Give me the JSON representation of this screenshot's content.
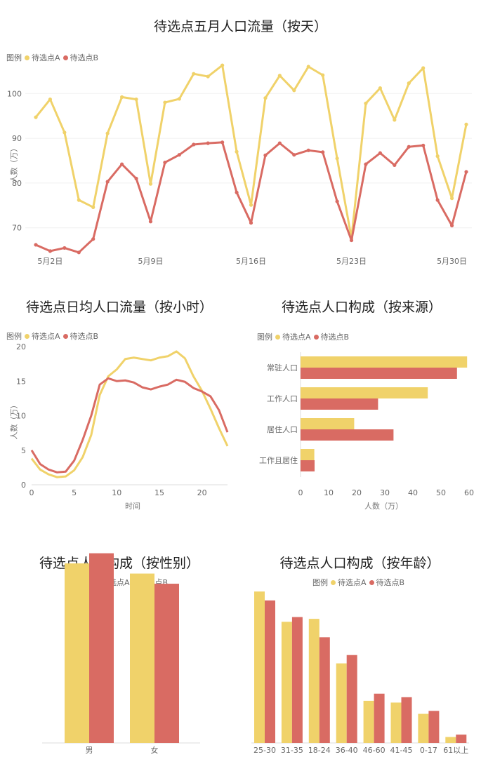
{
  "colors": {
    "a": "#f0d26a",
    "b": "#d96b63",
    "grid": "#f0f0f0"
  },
  "legend": {
    "label": "图例",
    "a": "待选点A",
    "b": "待选点B"
  },
  "chart_data": [
    {
      "type": "line",
      "title": "待选点五月人口流量（按天）",
      "ylabel": "人数（万）",
      "xlabel": "",
      "x": [
        1,
        2,
        3,
        4,
        5,
        6,
        7,
        8,
        9,
        10,
        11,
        12,
        13,
        14,
        15,
        16,
        17,
        18,
        19,
        20,
        21,
        22,
        23,
        24,
        25,
        26,
        27,
        28,
        29,
        30,
        31
      ],
      "xticks": [
        {
          "x": 2,
          "label": "5月2日"
        },
        {
          "x": 9,
          "label": "5月9日"
        },
        {
          "x": 16,
          "label": "5月16日"
        },
        {
          "x": 23,
          "label": "5月23日"
        },
        {
          "x": 30,
          "label": "5月30日"
        }
      ],
      "ylim": [
        64,
        106
      ],
      "yticks": [
        70,
        80,
        90,
        100
      ],
      "series": [
        {
          "name": "待选点A",
          "values": [
            94.7,
            98.7,
            91.3,
            76.2,
            74.6,
            91.1,
            99.2,
            98.7,
            79.8,
            98.0,
            98.8,
            104.4,
            103.8,
            106.3,
            87.0,
            75.1,
            99.0,
            104.0,
            100.7,
            106.0,
            104.1,
            85.5,
            67.7,
            97.8,
            101.2,
            94.1,
            102.3,
            105.7,
            86.0,
            76.6,
            93.1
          ]
        },
        {
          "name": "待选点B",
          "values": [
            66.2,
            64.8,
            65.5,
            64.5,
            67.5,
            80.3,
            84.2,
            81.0,
            71.4,
            84.6,
            86.3,
            88.6,
            88.9,
            89.1,
            77.9,
            71.1,
            86.2,
            88.9,
            86.3,
            87.3,
            86.9,
            75.9,
            67.2,
            84.2,
            86.7,
            84.0,
            88.1,
            88.4,
            76.2,
            70.5,
            82.5
          ]
        }
      ]
    },
    {
      "type": "line",
      "title": "待选点日均人口流量（按小时）",
      "xlabel": "时间",
      "ylabel": "人数（万）",
      "x": [
        0,
        1,
        2,
        3,
        4,
        5,
        6,
        7,
        8,
        9,
        10,
        11,
        12,
        13,
        14,
        15,
        16,
        17,
        18,
        19,
        20,
        21,
        22,
        23
      ],
      "xlim": [
        0,
        23
      ],
      "xticks": [
        0,
        5,
        10,
        15,
        20
      ],
      "ylim": [
        0,
        20
      ],
      "yticks": [
        0,
        5,
        10,
        15,
        20
      ],
      "series": [
        {
          "name": "待选点A",
          "values": [
            3.8,
            2.2,
            1.5,
            1.1,
            1.2,
            2.1,
            4.0,
            7.2,
            13.0,
            15.7,
            16.7,
            18.2,
            18.4,
            18.2,
            18.0,
            18.4,
            18.6,
            19.3,
            18.3,
            15.7,
            13.6,
            11.0,
            8.2,
            5.6
          ]
        },
        {
          "name": "待选点B",
          "values": [
            5.0,
            3.0,
            2.2,
            1.8,
            1.9,
            3.5,
            6.5,
            10.0,
            14.5,
            15.4,
            15.0,
            15.1,
            14.8,
            14.1,
            13.8,
            14.2,
            14.5,
            15.2,
            14.9,
            14.0,
            13.5,
            12.8,
            10.8,
            7.6
          ]
        }
      ]
    },
    {
      "type": "bar",
      "orientation": "horizontal",
      "title": "待选点人口构成（按来源）",
      "xlabel": "人数（万）",
      "ylabel": "",
      "categories": [
        "常驻人口",
        "工作人口",
        "居住人口",
        "工作且居住"
      ],
      "xlim": [
        0,
        60
      ],
      "xticks": [
        0,
        10,
        20,
        30,
        40,
        50,
        60
      ],
      "series": [
        {
          "name": "待选点A",
          "values": [
            59.3,
            45.3,
            19.1,
            4.9
          ]
        },
        {
          "name": "待选点B",
          "values": [
            55.7,
            27.6,
            33.1,
            5.0
          ]
        }
      ]
    },
    {
      "type": "bar",
      "title": "待选点人口构成（按性别）",
      "xlabel": "",
      "ylabel": "",
      "categories": [
        "男",
        "女"
      ],
      "ylim": [
        0,
        53
      ],
      "series": [
        {
          "name": "待选点A",
          "values": [
            49.5,
            46.7
          ]
        },
        {
          "name": "待选点B",
          "values": [
            52.3,
            43.9
          ]
        }
      ]
    },
    {
      "type": "bar",
      "title": "待选点人口构成（按年龄）",
      "xlabel": "",
      "ylabel": "",
      "categories": [
        "25-30",
        "31-35",
        "18-24",
        "36-40",
        "46-60",
        "41-45",
        "0-17",
        "61以上"
      ],
      "ylim": [
        0,
        28
      ],
      "series": [
        {
          "name": "待选点A",
          "values": [
            25.5,
            20.4,
            20.9,
            13.4,
            7.1,
            6.8,
            4.9,
            1.0
          ]
        },
        {
          "name": "待选点B",
          "values": [
            24.0,
            21.2,
            17.8,
            14.8,
            8.3,
            7.7,
            5.4,
            1.4
          ]
        }
      ]
    }
  ]
}
